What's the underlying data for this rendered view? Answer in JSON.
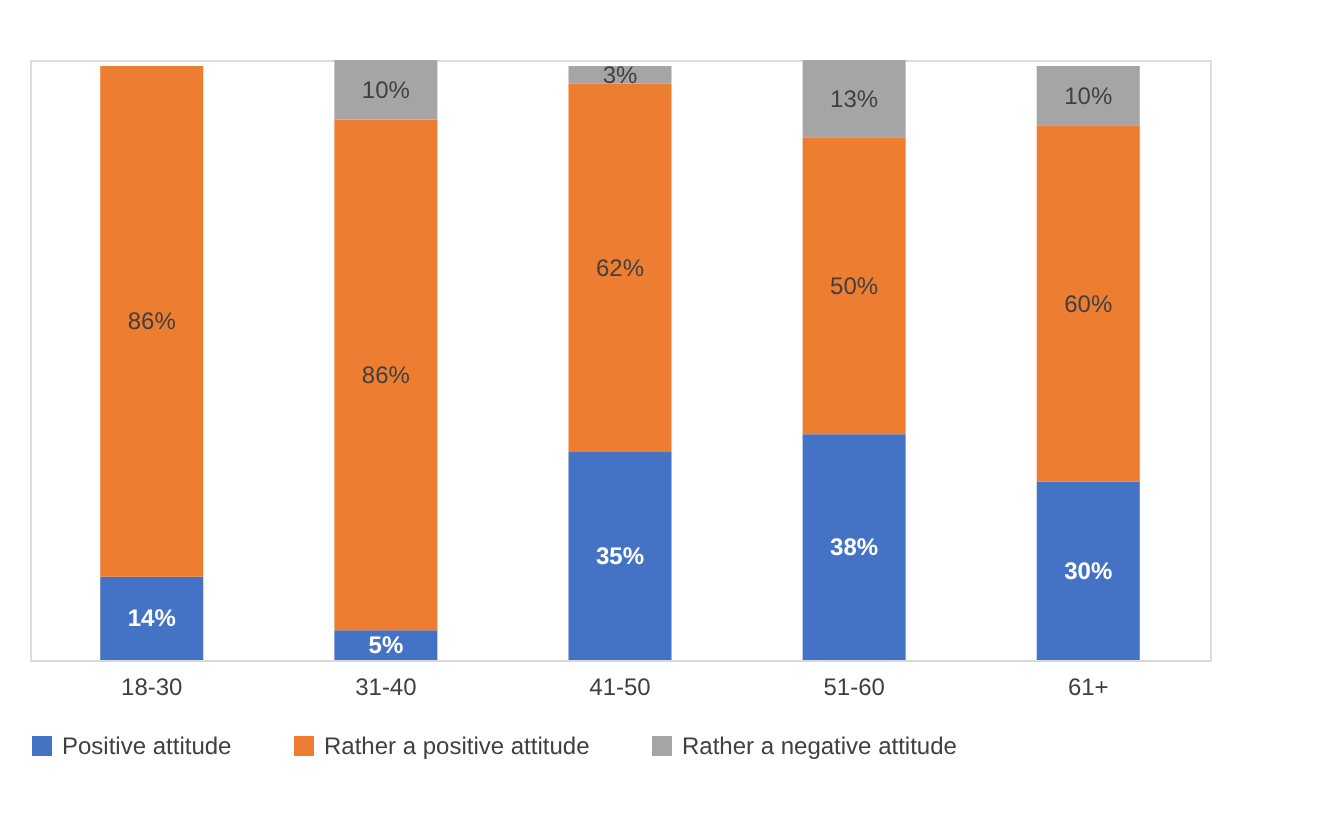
{
  "chart_data": {
    "type": "bar",
    "stacked": true,
    "legend": "bottom",
    "grid": false,
    "categories": [
      "18-30",
      "31-40",
      "41-50",
      "51-60",
      "61+"
    ],
    "series": [
      {
        "name": "Positive attitude",
        "color": "#4472c4",
        "values": [
          14,
          5,
          35,
          38,
          30
        ],
        "value_labels": [
          "14%",
          "5%",
          "35%",
          "38%",
          "30%"
        ]
      },
      {
        "name": "Rather a positive attitude",
        "color": "#ed7d31",
        "values": [
          86,
          86,
          62,
          50,
          60
        ],
        "value_labels": [
          "86%",
          "86%",
          "62%",
          "50%",
          "60%"
        ]
      },
      {
        "name": "Rather a negative attitude",
        "color": "#a5a5a5",
        "values": [
          null,
          10,
          3,
          13,
          10
        ],
        "value_labels": [
          null,
          "10%",
          "3%",
          "13%",
          "10%"
        ]
      }
    ]
  }
}
